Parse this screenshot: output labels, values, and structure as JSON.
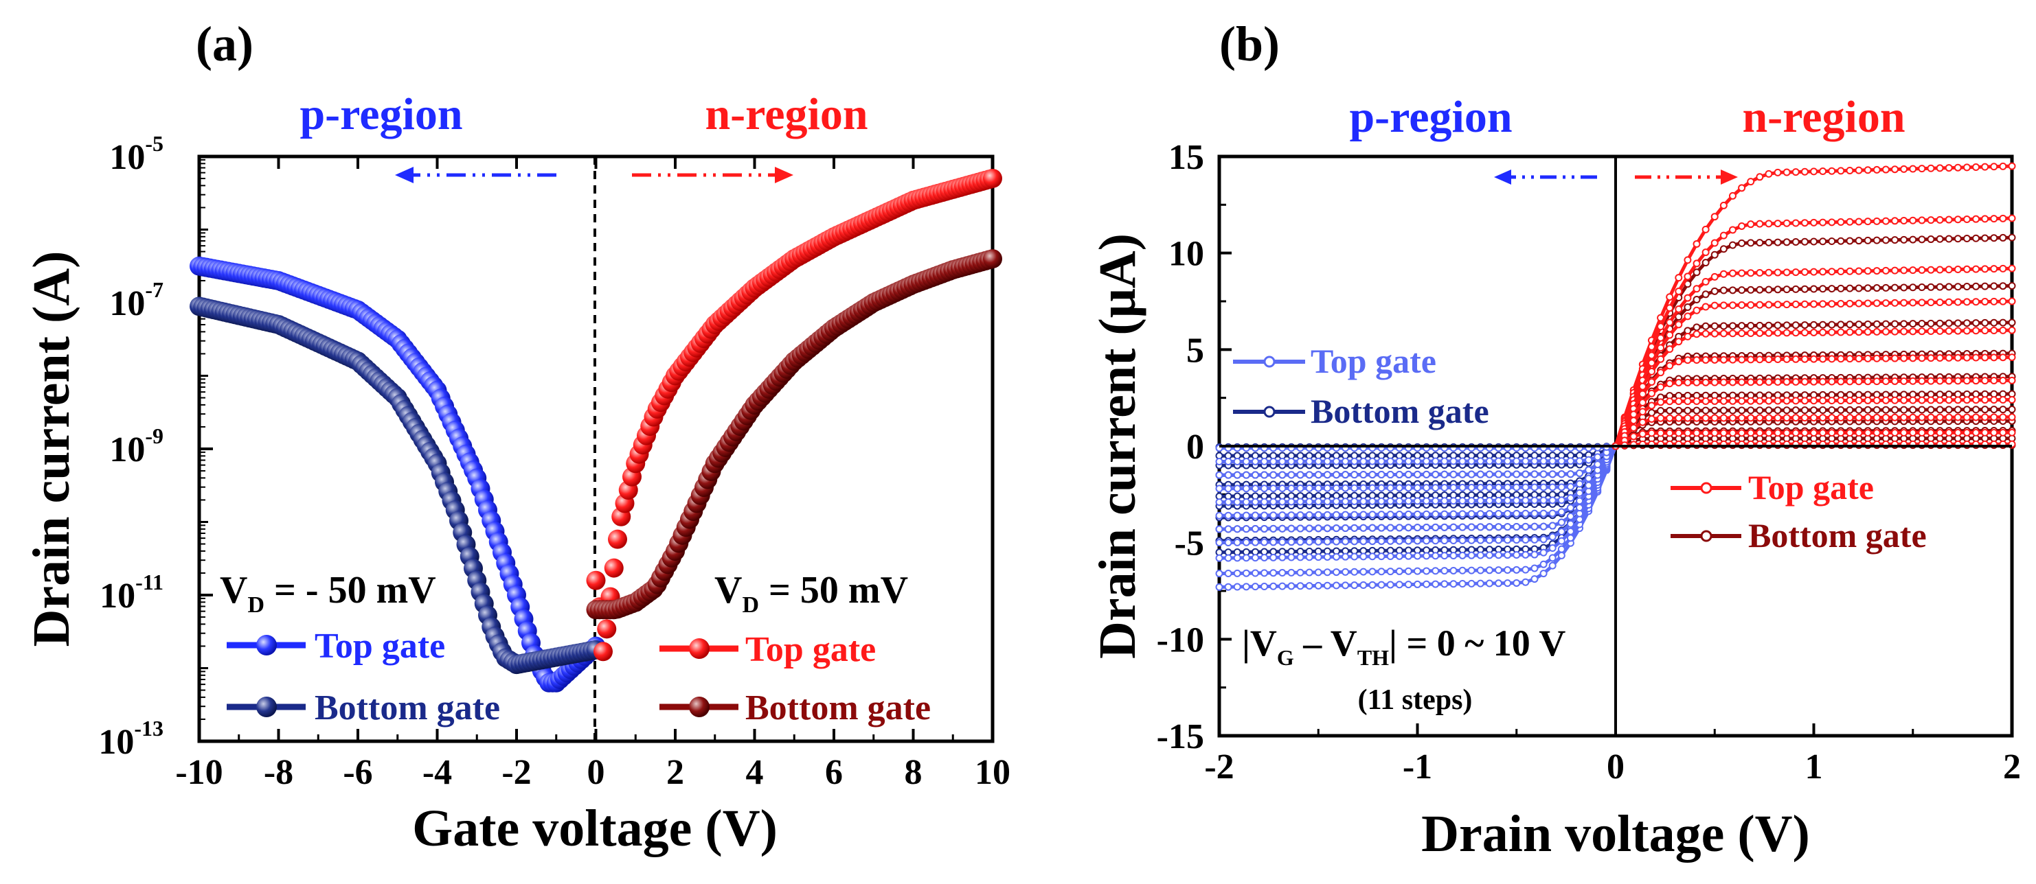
{
  "colors": {
    "top_gate_p": "#1f2bff",
    "bottom_gate_p": "#1a2a8a",
    "top_gate_n": "#ff1a1a",
    "bottom_gate_n": "#8b0a0a",
    "top_gate_p_light": "#5a6cf5",
    "axis": "#000000"
  },
  "chart_data": [
    {
      "panel_label": "(a)",
      "type": "scatter",
      "title": "",
      "xlabel": "Gate voltage (V)",
      "ylabel": "Drain current (A)",
      "xlim": [
        -10,
        10
      ],
      "ylim_log10": [
        -13,
        -5
      ],
      "yscale": "log",
      "x_ticks": [
        "-10",
        "-8",
        "-6",
        "-4",
        "-2",
        "0",
        "2",
        "4",
        "6",
        "8",
        "10"
      ],
      "y_ticks": [
        {
          "base": "10",
          "exp": "-5"
        },
        {
          "base": "10",
          "exp": "-7"
        },
        {
          "base": "10",
          "exp": "-9"
        },
        {
          "base": "10",
          "exp": "-11"
        },
        {
          "base": "10",
          "exp": "-13"
        }
      ],
      "region_labels": {
        "p": "p-region",
        "n": "n-region"
      },
      "conditions": {
        "p": {
          "prefix": "V",
          "sub": "D",
          "suffix": " = - 50 mV"
        },
        "n": {
          "prefix": "V",
          "sub": "D",
          "suffix": " = 50 mV"
        }
      },
      "legend_p": [
        "Top gate",
        "Bottom gate"
      ],
      "legend_n": [
        "Top gate",
        "Bottom gate"
      ],
      "series": [
        {
          "name": "Top gate (p)",
          "side": "p",
          "x": [
            -10,
            -8,
            -6,
            -5,
            -4,
            -3,
            -2.5,
            -2,
            -1.5,
            -1.2,
            -1.0,
            -0.6,
            -0.2,
            0
          ],
          "log10_y": [
            -6.5,
            -6.7,
            -7.1,
            -7.5,
            -8.2,
            -9.4,
            -10.2,
            -11.0,
            -11.9,
            -12.2,
            -12.2,
            -12.0,
            -11.8,
            -11.7
          ]
        },
        {
          "name": "Bottom gate (p)",
          "side": "p",
          "x": [
            -10,
            -8,
            -6,
            -5,
            -4,
            -3.5,
            -3,
            -2.6,
            -2.3,
            -2.0,
            -1.5,
            -1.0,
            -0.5,
            0
          ],
          "log10_y": [
            -7.05,
            -7.3,
            -7.8,
            -8.3,
            -9.2,
            -9.9,
            -10.8,
            -11.5,
            -11.85,
            -11.95,
            -11.9,
            -11.85,
            -11.8,
            -11.75
          ]
        },
        {
          "name": "Top gate (n)",
          "side": "n",
          "x": [
            0,
            0.1,
            0.2,
            0.3,
            0.6,
            1,
            1.5,
            2,
            3,
            4,
            5,
            6,
            8,
            10
          ],
          "log10_y": [
            -10.8,
            -11.2,
            -11.9,
            -11.3,
            -10.0,
            -9.2,
            -8.5,
            -8.0,
            -7.3,
            -6.8,
            -6.4,
            -6.1,
            -5.6,
            -5.3
          ]
        },
        {
          "name": "Bottom gate (n)",
          "side": "n",
          "x": [
            0,
            0.5,
            1,
            1.5,
            2,
            2.5,
            3,
            4,
            5,
            6,
            7,
            8,
            9,
            10
          ],
          "log10_y": [
            -11.2,
            -11.2,
            -11.1,
            -10.9,
            -10.4,
            -9.8,
            -9.2,
            -8.4,
            -7.8,
            -7.35,
            -7.0,
            -6.75,
            -6.55,
            -6.4
          ]
        }
      ]
    },
    {
      "panel_label": "(b)",
      "type": "scatter",
      "title": "",
      "xlabel": "Drain voltage (V)",
      "ylabel": "Drain current (μA)",
      "xlim": [
        -2,
        2
      ],
      "ylim": [
        -15,
        15
      ],
      "x_ticks": [
        -2,
        -1,
        0,
        1,
        2
      ],
      "y_ticks": [
        15,
        10,
        5,
        0,
        -5,
        -10,
        -15
      ],
      "region_labels": {
        "p": "p-region",
        "n": "n-region"
      },
      "legend_p": [
        "Top gate",
        "Bottom gate"
      ],
      "legend_n": [
        "Top gate",
        "Bottom gate"
      ],
      "annotation": {
        "text_a": "|V",
        "sub_a": "G",
        "text_b": " – V",
        "sub_b": "TH",
        "text_c": "| = 0 ~ 10 V"
      },
      "steps_note": "(11 steps)",
      "series": [
        {
          "name": "Top gate (p)",
          "side": "p",
          "saturation_uA": [
            -7.3,
            -6.6,
            -5.8,
            -5.0,
            -4.3,
            -3.6,
            -2.9,
            -2.2,
            -1.5,
            -0.8,
            -0.1
          ]
        },
        {
          "name": "Bottom gate (p)",
          "side": "p",
          "saturation_uA": [
            -5.5,
            -4.9,
            -4.3,
            -3.7,
            -3.1,
            -2.6,
            -2.0,
            -1.5,
            -1.0,
            -0.5,
            -0.05
          ]
        },
        {
          "name": "Top gate (n)",
          "side": "n",
          "saturation_uA": [
            14.5,
            11.8,
            9.2,
            7.5,
            6.0,
            4.6,
            3.4,
            2.4,
            1.5,
            0.7,
            0.1
          ]
        },
        {
          "name": "Bottom gate (n)",
          "side": "n",
          "saturation_uA": [
            10.8,
            8.3,
            6.4,
            4.8,
            3.6,
            2.7,
            1.9,
            1.3,
            0.8,
            0.4,
            0.05
          ]
        }
      ]
    }
  ]
}
